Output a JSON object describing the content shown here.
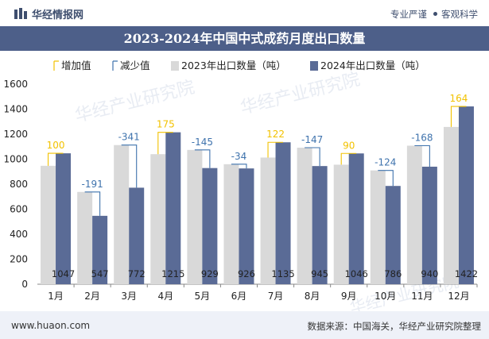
{
  "header": {
    "brand": "华经情报网",
    "tag1": "专业严谨",
    "tag2": "客观科学"
  },
  "watermarks": [
    "华经产业研究院",
    "华经产业研究院",
    "华经产业研究院"
  ],
  "footer": {
    "site": "www.huaon.com",
    "source": "数据来源：中国海关，华经产业研究院整理"
  },
  "colors": {
    "bar2023": "#d9d9d9",
    "bar2024": "#5a6b96",
    "increase": "#f2c200",
    "decrease": "#3f73ad",
    "title_bg": "#4d5f89"
  },
  "chart_data": {
    "type": "bar",
    "title": "2023-2024年中国中式成药月度出口数量",
    "categories": [
      "1月",
      "2月",
      "3月",
      "4月",
      "5月",
      "6月",
      "7月",
      "8月",
      "9月",
      "10月",
      "11月",
      "12月"
    ],
    "series": [
      {
        "name": "2023年出口数量（吨）",
        "values": [
          947,
          738,
          1113,
          1040,
          1074,
          960,
          1013,
          1092,
          956,
          910,
          1108,
          1258
        ]
      },
      {
        "name": "2024年出口数量（吨）",
        "values": [
          1047,
          547,
          772,
          1215,
          929,
          926,
          1135,
          945,
          1046,
          786,
          940,
          1422
        ]
      }
    ],
    "change": [
      100,
      -191,
      -341,
      175,
      -145,
      -34,
      122,
      -147,
      90,
      -124,
      -168,
      164
    ],
    "change_legend": {
      "increase": "增加值",
      "decrease": "减少值"
    },
    "ylim": [
      0,
      1600
    ],
    "yticks": [
      0,
      200,
      400,
      600,
      800,
      1000,
      1200,
      1400,
      1600
    ],
    "legend_position": "top",
    "grid": false
  }
}
